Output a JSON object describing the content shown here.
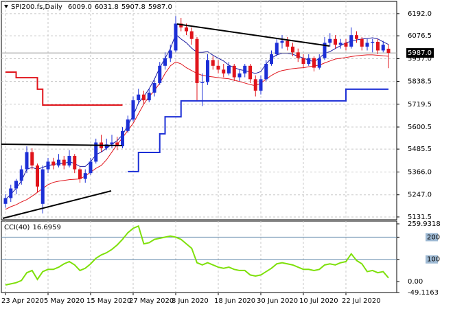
{
  "chart_data": [
    {
      "type": "candlestick",
      "title": "SPI200.fs,Daily",
      "ohlc_header": [
        "6009.0",
        "6031.8",
        "5907.8",
        "5987.0"
      ],
      "categories": [
        "23 Apr 2020",
        null,
        null,
        null,
        null,
        null,
        null,
        null,
        "5 May 2020",
        null,
        null,
        null,
        null,
        null,
        null,
        null,
        "15 May 2020",
        null,
        null,
        null,
        null,
        null,
        null,
        null,
        "27 May 2020",
        null,
        null,
        null,
        null,
        null,
        null,
        null,
        "8 Jun 2020",
        null,
        null,
        null,
        null,
        null,
        null,
        null,
        "18 Jun 2020",
        null,
        null,
        null,
        null,
        null,
        null,
        null,
        "30 Jun 2020",
        null,
        null,
        null,
        null,
        null,
        null,
        null,
        "10 Jul 2020",
        null,
        null,
        null,
        null,
        null,
        null,
        null,
        "22 Jul 2020",
        null,
        null,
        null,
        null,
        null,
        null,
        null,
        null
      ],
      "open": [
        5200,
        5230,
        5280,
        5320,
        5380,
        5470,
        5400,
        5200,
        5380,
        5420,
        5400,
        5430,
        5400,
        5450,
        5380,
        5330,
        5360,
        5420,
        5520,
        5490,
        5510,
        5520,
        5500,
        5580,
        5640,
        5740,
        5770,
        5740,
        5780,
        5830,
        5920,
        5960,
        6000,
        6140,
        6120,
        6100,
        6060,
        5830,
        5835,
        5950,
        5920,
        5900,
        5880,
        5920,
        5860,
        5880,
        5920,
        5850,
        5790,
        5850,
        5930,
        5980,
        6040,
        6050,
        6020,
        5990,
        5960,
        5930,
        5960,
        5910,
        5960,
        6040,
        6060,
        6030,
        6040,
        6020,
        6080,
        6060,
        6020,
        6040,
        6045,
        6000,
        6009
      ],
      "high": [
        5250,
        5300,
        5330,
        5400,
        5500,
        5490,
        5410,
        5400,
        5440,
        5440,
        5460,
        5450,
        5480,
        5460,
        5390,
        5380,
        5440,
        5540,
        5560,
        5540,
        5560,
        5550,
        5600,
        5660,
        5760,
        5800,
        5790,
        5800,
        5850,
        5940,
        5990,
        6030,
        6180,
        6170,
        6140,
        6120,
        6070,
        5880,
        5980,
        5970,
        5950,
        5930,
        5940,
        5930,
        5900,
        5930,
        5930,
        5870,
        5870,
        5950,
        6000,
        6060,
        6080,
        6070,
        6040,
        6010,
        5980,
        5980,
        5970,
        5980,
        6070,
        6090,
        6080,
        6060,
        6060,
        6120,
        6100,
        6070,
        6060,
        6060,
        6060,
        6050,
        6031.8
      ],
      "low": [
        5180,
        5210,
        5250,
        5300,
        5360,
        5380,
        5260,
        5150,
        5360,
        5380,
        5390,
        5380,
        5390,
        5360,
        5310,
        5310,
        5350,
        5410,
        5470,
        5480,
        5490,
        5480,
        5490,
        5570,
        5630,
        5720,
        5720,
        5730,
        5760,
        5820,
        5900,
        5940,
        5990,
        6100,
        6080,
        6030,
        5740,
        5710,
        5820,
        5900,
        5880,
        5860,
        5870,
        5840,
        5840,
        5860,
        5830,
        5760,
        5770,
        5840,
        5920,
        5970,
        6010,
        6000,
        5970,
        5940,
        5910,
        5920,
        5890,
        5900,
        5950,
        6020,
        6010,
        6010,
        6000,
        6010,
        6040,
        6000,
        6000,
        5990,
        5980,
        5990,
        5907.8
      ],
      "close": [
        5230,
        5280,
        5320,
        5380,
        5470,
        5400,
        5290,
        5380,
        5420,
        5400,
        5430,
        5400,
        5450,
        5380,
        5330,
        5360,
        5420,
        5520,
        5490,
        5510,
        5520,
        5500,
        5580,
        5640,
        5740,
        5770,
        5740,
        5780,
        5830,
        5920,
        5960,
        6000,
        6140,
        6120,
        6100,
        6060,
        5830,
        5835,
        5950,
        5920,
        5900,
        5880,
        5920,
        5860,
        5880,
        5920,
        5850,
        5790,
        5850,
        5930,
        5980,
        6040,
        6050,
        6020,
        5990,
        5960,
        5930,
        5960,
        5910,
        5960,
        6040,
        6060,
        6030,
        6040,
        6020,
        6080,
        6060,
        6020,
        6040,
        6045,
        6000,
        6030,
        5987
      ],
      "up_color": "#1c2fd6",
      "down_color": "#e0141b",
      "overlays": [
        {
          "style": "line",
          "color": "#1a1aa0",
          "values": [
            5222,
            5250,
            5280,
            5320,
            5380,
            5390,
            5380,
            5390,
            5400,
            5405,
            5410,
            5410,
            5420,
            5410,
            5395,
            5395,
            5420,
            5456,
            5470,
            5490,
            5510,
            5530,
            5560,
            5610,
            5660,
            5726,
            5760,
            5800,
            5850,
            5910,
            5959,
            6010,
            6084,
            6060,
            6040,
            6012,
            5990,
            5990,
            5994,
            5975,
            5960,
            5945,
            5923,
            5910,
            5900,
            5895,
            5887,
            5880,
            5890,
            5930,
            5960,
            5977,
            5985,
            5985,
            5980,
            5970,
            5960,
            5950,
            5941,
            5960,
            5985,
            5994,
            6010,
            6025,
            6040,
            6048,
            6055,
            6060,
            6062,
            6066,
            6060,
            6045,
            6031
          ]
        },
        {
          "style": "line",
          "color": "#e0141b",
          "values": [
            5171,
            5185,
            5195,
            5210,
            5222,
            5240,
            5260,
            5280,
            5300,
            5312,
            5318,
            5322,
            5326,
            5328,
            5330,
            5345,
            5365,
            5385,
            5400,
            5430,
            5470,
            5510,
            5545,
            5583,
            5620,
            5670,
            5720,
            5760,
            5790,
            5830,
            5880,
            5920,
            5940,
            5930,
            5910,
            5895,
            5880,
            5870,
            5865,
            5862,
            5858,
            5855,
            5852,
            5845,
            5838,
            5830,
            5822,
            5816,
            5830,
            5850,
            5870,
            5885,
            5895,
            5900,
            5905,
            5908,
            5910,
            5915,
            5920,
            5923,
            5935,
            5945,
            5955,
            5959,
            5963,
            5968,
            5972,
            5975,
            5977,
            5977,
            5975,
            5972,
            5970
          ]
        },
        {
          "style": "step",
          "color": "#e0141b",
          "values": [
            5887,
            5887,
            5858,
            5858,
            5858,
            5858,
            5798,
            5715,
            5715,
            5715,
            5715,
            5715,
            5715,
            5715,
            5715,
            5715,
            5715,
            5715,
            5715,
            5715,
            5715,
            5715,
            5715,
            null,
            null,
            null,
            null,
            null,
            null,
            null,
            null,
            null,
            null,
            null,
            null,
            null,
            null,
            null,
            null,
            null,
            null,
            null,
            null,
            null,
            null,
            null,
            null,
            null,
            null,
            null,
            null,
            null,
            null,
            null,
            null,
            null,
            null,
            null,
            null,
            null,
            null,
            null,
            null,
            null,
            null,
            null,
            null,
            null,
            null,
            null,
            null,
            null,
            null
          ]
        },
        {
          "style": "step",
          "color": "#1c2fd6",
          "values": [
            null,
            null,
            null,
            null,
            null,
            null,
            null,
            null,
            null,
            null,
            null,
            null,
            null,
            null,
            null,
            null,
            null,
            null,
            null,
            null,
            null,
            null,
            null,
            5368,
            5368,
            5468,
            5468,
            5468,
            5468,
            5565,
            5654,
            5654,
            5654,
            5737,
            5737,
            5737,
            5737,
            5737,
            5737,
            5737,
            5737,
            5737,
            5737,
            5737,
            5737,
            5737,
            5737,
            5737,
            5737,
            5737,
            5737,
            5737,
            5737,
            5737,
            5737,
            5737,
            5737,
            5737,
            5737,
            5737,
            5737,
            5737,
            5737,
            5737,
            5798,
            5798,
            5798,
            5798,
            5798,
            5798,
            5798,
            5798,
            5798
          ]
        }
      ],
      "current_price": {
        "value": 5987,
        "label": "5987.0"
      },
      "ylim": [
        5117,
        6256
      ],
      "yticks": [
        {
          "value": 6192,
          "label": "6192.0"
        },
        {
          "value": 6076.5,
          "label": "6076.5"
        },
        {
          "value": 5957,
          "label": "5957.0"
        },
        {
          "value": 5838.5,
          "label": "5838.5"
        },
        {
          "value": 5719.5,
          "label": "5719.5"
        },
        {
          "value": 5600.5,
          "label": "5600.5"
        },
        {
          "value": 5485.5,
          "label": "5485.5"
        },
        {
          "value": 5366,
          "label": "5366.0"
        },
        {
          "value": 5247,
          "label": "5247.0"
        },
        {
          "value": 5131.5,
          "label": "5131.5"
        }
      ],
      "grid": true
    },
    {
      "type": "line",
      "name": "CCI(40)",
      "color": "#7ee00a",
      "values": [
        -15,
        -10,
        -5,
        5,
        40,
        50,
        10,
        45,
        55,
        55,
        65,
        80,
        90,
        75,
        50,
        60,
        80,
        105,
        120,
        130,
        145,
        165,
        190,
        220,
        240,
        250,
        170,
        175,
        190,
        195,
        200,
        205,
        200,
        190,
        170,
        150,
        85,
        75,
        85,
        75,
        65,
        60,
        65,
        55,
        50,
        50,
        30,
        25,
        30,
        45,
        60,
        80,
        85,
        80,
        75,
        65,
        55,
        55,
        50,
        55,
        75,
        80,
        75,
        85,
        90,
        125,
        95,
        80,
        45,
        50,
        40,
        45,
        16.6959
      ],
      "ylim": [
        -49.1163,
        259.9318
      ],
      "yticks": [
        259.9318,
        200,
        100,
        {
          "value": 0,
          "label": "0.00"
        },
        -49.1163
      ],
      "levels": [
        200,
        100
      ]
    }
  ]
}
